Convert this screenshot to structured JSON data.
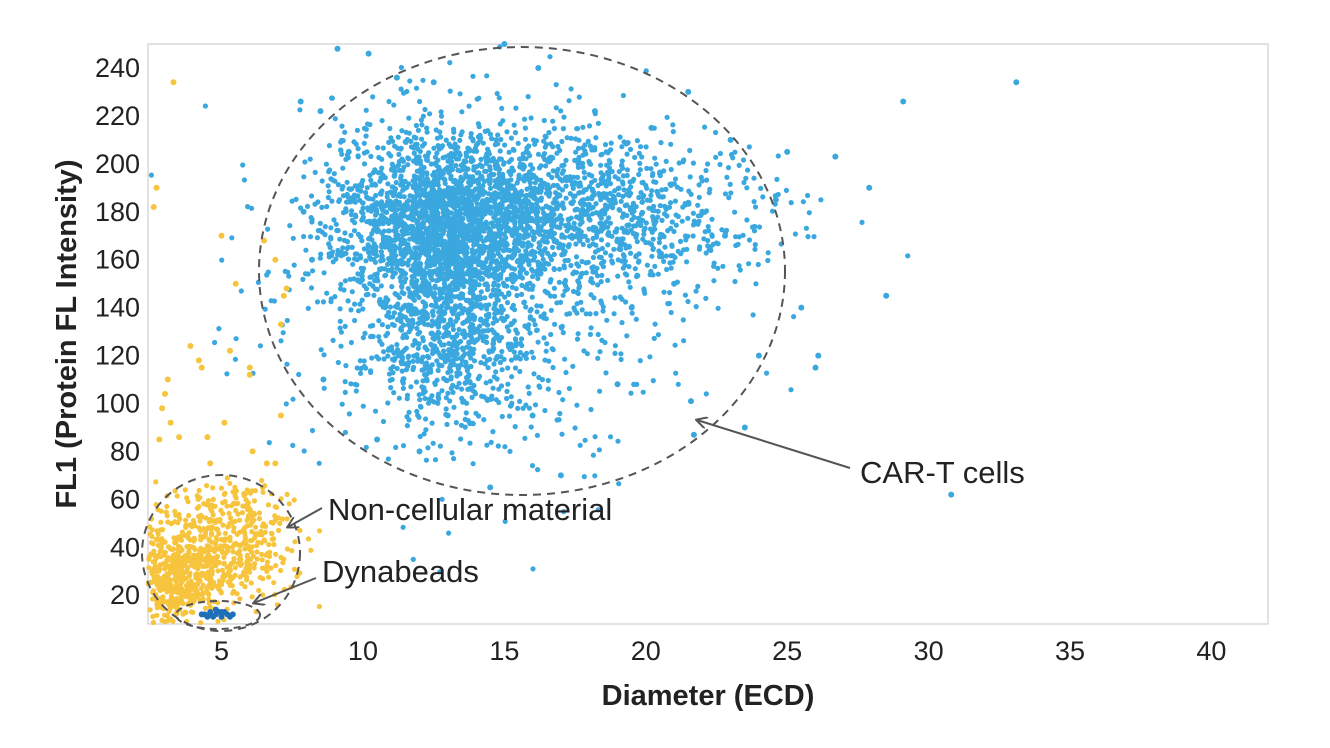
{
  "chart_data": {
    "type": "scatter",
    "title": "",
    "xlabel": "Diameter (ECD)",
    "ylabel": "FL1 (Protein FL Intensity)",
    "xlim": [
      2.4,
      42
    ],
    "ylim": [
      8,
      250
    ],
    "xticks": [
      5,
      10,
      15,
      20,
      25,
      30,
      35,
      40
    ],
    "yticks": [
      20,
      40,
      60,
      80,
      100,
      120,
      140,
      160,
      180,
      200,
      220,
      240
    ],
    "grid": false,
    "legend": "none",
    "series": [
      {
        "color": "#3aa8df",
        "points": [
          [
            9.1,
            248
          ],
          [
            10.2,
            246
          ],
          [
            15.0,
            250
          ],
          [
            16.2,
            240
          ],
          [
            7.8,
            226
          ],
          [
            8.5,
            222
          ],
          [
            11.2,
            236
          ],
          [
            12.5,
            234
          ],
          [
            18.2,
            222
          ],
          [
            20.2,
            215
          ],
          [
            21.5,
            230
          ],
          [
            23.0,
            210
          ],
          [
            25.0,
            205
          ],
          [
            26.7,
            203
          ],
          [
            27.9,
            190
          ],
          [
            29.1,
            226
          ],
          [
            33.1,
            234
          ],
          [
            24.6,
            185
          ],
          [
            22.8,
            170
          ],
          [
            25.5,
            140
          ],
          [
            26.1,
            120
          ],
          [
            26.0,
            115
          ],
          [
            28.5,
            145
          ],
          [
            21.6,
            101
          ],
          [
            19.0,
            108
          ],
          [
            30.8,
            62
          ],
          [
            21.7,
            87
          ],
          [
            14.5,
            65
          ],
          [
            24.0,
            120
          ],
          [
            23.5,
            90
          ],
          [
            17.0,
            70
          ],
          [
            12.0,
            80
          ],
          [
            10.5,
            85
          ],
          [
            8.6,
            110
          ],
          [
            8.2,
            160
          ],
          [
            7.9,
            180
          ],
          [
            9.5,
            205
          ],
          [
            13.0,
            95
          ],
          [
            16.0,
            95
          ],
          [
            19.5,
            140
          ],
          [
            21.0,
            150
          ],
          [
            22.0,
            180
          ],
          [
            20.5,
            196
          ]
        ],
        "cloud": [
          {
            "cx": 12.6,
            "cy": 175,
            "sx": 1.8,
            "sy": 18,
            "n": 1500
          },
          {
            "cx": 13.2,
            "cy": 135,
            "sx": 1.2,
            "sy": 20,
            "n": 700
          },
          {
            "cx": 15.6,
            "cy": 182,
            "sx": 2.6,
            "sy": 16,
            "n": 800
          },
          {
            "cx": 19.0,
            "cy": 178,
            "sx": 3.0,
            "sy": 17,
            "n": 500
          },
          {
            "cx": 14.0,
            "cy": 150,
            "sx": 3.6,
            "sy": 38,
            "n": 900
          }
        ]
      },
      {
        "color": "#f7c43d",
        "points": [
          [
            3.3,
            234
          ],
          [
            2.7,
            190
          ],
          [
            2.6,
            182
          ],
          [
            5.0,
            170
          ],
          [
            6.5,
            168
          ],
          [
            6.9,
            160
          ],
          [
            7.2,
            145
          ],
          [
            7.3,
            148
          ],
          [
            5.5,
            150
          ],
          [
            5.3,
            122
          ],
          [
            3.9,
            124
          ],
          [
            3.1,
            110
          ],
          [
            3.0,
            104
          ],
          [
            2.9,
            98
          ],
          [
            4.3,
            115
          ],
          [
            6.0,
            115
          ],
          [
            6.0,
            112
          ],
          [
            7.1,
            133
          ],
          [
            7.1,
            95
          ],
          [
            3.5,
            86
          ],
          [
            4.5,
            86
          ],
          [
            6.1,
            80
          ],
          [
            4.6,
            75
          ],
          [
            6.6,
            75
          ],
          [
            6.9,
            75
          ],
          [
            2.8,
            85
          ],
          [
            3.2,
            92
          ],
          [
            5.1,
            92
          ],
          [
            4.2,
            118
          ]
        ],
        "cloud": [
          {
            "cx": 3.4,
            "cy": 28,
            "sx": 0.7,
            "sy": 10,
            "n": 400
          },
          {
            "cx": 4.8,
            "cy": 38,
            "sx": 1.2,
            "sy": 12,
            "n": 350
          },
          {
            "cx": 6.1,
            "cy": 48,
            "sx": 0.7,
            "sy": 10,
            "n": 120
          }
        ]
      },
      {
        "color": "#1f6fb8",
        "points": [
          [
            4.4,
            12
          ],
          [
            4.6,
            13
          ],
          [
            4.8,
            12
          ],
          [
            5.0,
            11
          ],
          [
            5.2,
            12
          ],
          [
            4.5,
            11
          ],
          [
            4.9,
            13
          ],
          [
            5.1,
            13
          ],
          [
            4.7,
            11
          ],
          [
            5.3,
            11
          ],
          [
            4.3,
            12
          ],
          [
            4.8,
            14
          ],
          [
            5.4,
            12
          ],
          [
            4.6,
            12
          ],
          [
            5.0,
            13
          ]
        ]
      }
    ],
    "annotations": [
      {
        "text": "CAR-T cells"
      },
      {
        "text": "Non-cellular material"
      },
      {
        "text": "Dynabeads"
      }
    ]
  }
}
